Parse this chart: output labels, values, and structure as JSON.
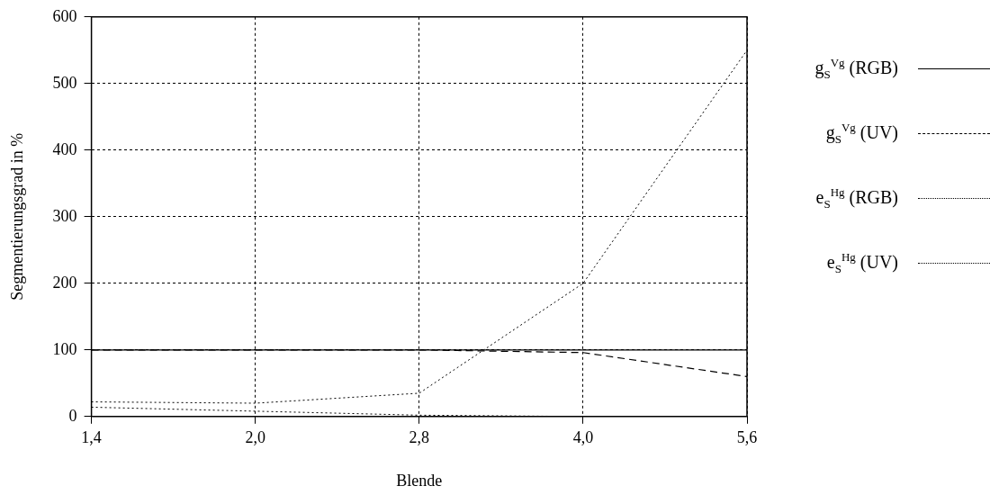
{
  "chart_data": {
    "type": "line",
    "xlabel": "Blende",
    "ylabel": "Segmentierungsgrad in %",
    "categories": [
      "1,4",
      "2,0",
      "2,8",
      "4,0",
      "5,6"
    ],
    "ylim": [
      0,
      600
    ],
    "yticks": [
      0,
      100,
      200,
      300,
      400,
      500,
      600
    ],
    "grid": true,
    "legend": "right",
    "marker": "none",
    "series": [
      {
        "name": "g$_{S}$$^{Vg}$ (RGB)",
        "color": "#000000",
        "line_style": "solid",
        "values": [
          100,
          100,
          100,
          100,
          100
        ]
      },
      {
        "name": "g$_{S}$$^{Vg}$ (UV)",
        "color": "#000000",
        "line_style": "dashed",
        "values": [
          100,
          100,
          100,
          96,
          60
        ]
      },
      {
        "name": "e$_{S}$$^{Hg}$ (RGB)",
        "color": "#000000",
        "line_style": "dotted",
        "values": [
          22,
          20,
          35,
          200,
          550
        ]
      },
      {
        "name": "e$_{S}$$^{Hg}$ (UV)",
        "color": "#000000",
        "line_style": "dotted",
        "values": [
          14,
          8,
          2,
          0,
          0
        ]
      }
    ]
  }
}
